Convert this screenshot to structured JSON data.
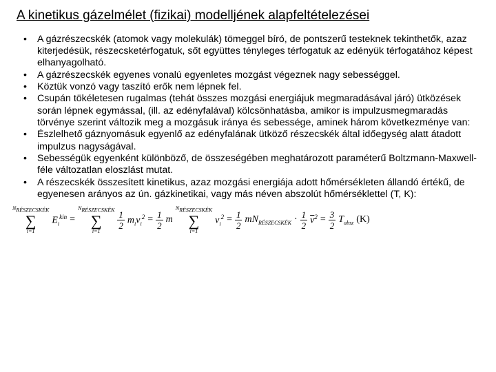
{
  "title": "A kinetikus gázelmélet (fizikai) modelljének alapfeltételezései",
  "bullets": [
    "A gázrészecskék (atomok vagy molekulák) tömeggel bíró, de pontszerű testeknek tekinthetők, azaz kiterjedésük, részecsketérfogatuk, sőt együttes tényleges térfogatuk az edényük térfogatához képest elhanyagolható.",
    "A gázrészecskék egyenes vonalú egyenletes mozgást végeznek nagy sebességgel.",
    "Köztük vonzó vagy taszító erők nem lépnek fel.",
    "Csupán tökéletesen rugalmas (tehát összes mozgási energiájuk megmaradásával járó) ütközések során lépnek egymással, (ill. az edényfalával) kölcsönhatásba, amikor is impulzusmegmaradás törvénye szerint változik meg a mozgásuk iránya és sebessége, aminek három következménye van:",
    "Észlelhető gáznyomásuk egyenlő az edényfalának ütköző részecskék által időegység alatt átadott impulzus nagyságával.",
    "Sebességük egyenként különböző, de összeségében meghatározott paraméterű Boltzmann-Maxwell-féle változatlan eloszlást mutat.",
    "A részecskék összesített kinetikus, azaz mozgási energiája adott hőmérsékleten állandó értékű, de egyenesen arányos az ún. gázkinetikai, vagy más néven abszolút hőmérséklettel (T, K):"
  ],
  "eq": {
    "Ntop": "N",
    "resz": "RÉSZECSKÉK",
    "i1": "i=1",
    "Ekin": "E",
    "kin": "kin",
    "i": "i",
    "eq": "=",
    "half_n": "1",
    "half_d": "2",
    "m": "m",
    "v": "v",
    "two": "2",
    "N": "N",
    "dot": "·",
    "vbar": "v",
    "three_n": "3",
    "three_d": "2",
    "T": "T",
    "absz": "absz",
    "K": "(K)"
  }
}
